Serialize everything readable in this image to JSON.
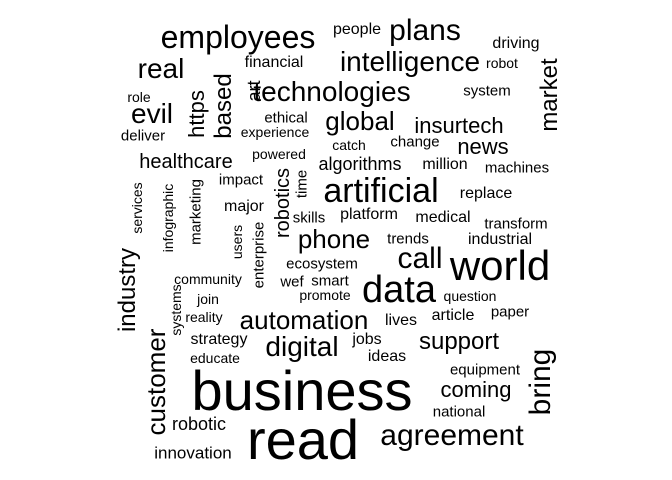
{
  "text_color": "#000000",
  "background_color": "#ffffff",
  "words": [
    "business",
    "read",
    "world",
    "data",
    "artificial",
    "employees",
    "agreement",
    "bring",
    "plans",
    "call",
    "technologies",
    "intelligence",
    "digital",
    "phone",
    "automation",
    "evil",
    "real",
    "global",
    "customer",
    "industry",
    "support",
    "market",
    "https",
    "based",
    "insurtech",
    "news",
    "coming",
    "healthcare",
    "algorithms",
    "robotic",
    "strategy",
    "robotics",
    "art",
    "people",
    "driving",
    "financial",
    "robot",
    "system",
    "role",
    "ethical",
    "experience",
    "deliver",
    "change",
    "catch",
    "powered",
    "million",
    "machines",
    "impact",
    "time",
    "replace",
    "infographic",
    "marketing",
    "major",
    "skills",
    "platform",
    "medical",
    "services",
    "transform",
    "users",
    "enterprise",
    "trends",
    "industrial",
    "ecosystem",
    "community",
    "wef",
    "smart",
    "promote",
    "question",
    "systems",
    "join",
    "paper",
    "reality",
    "lives",
    "article",
    "jobs",
    "educate",
    "ideas",
    "equipment",
    "national",
    "innovation"
  ]
}
